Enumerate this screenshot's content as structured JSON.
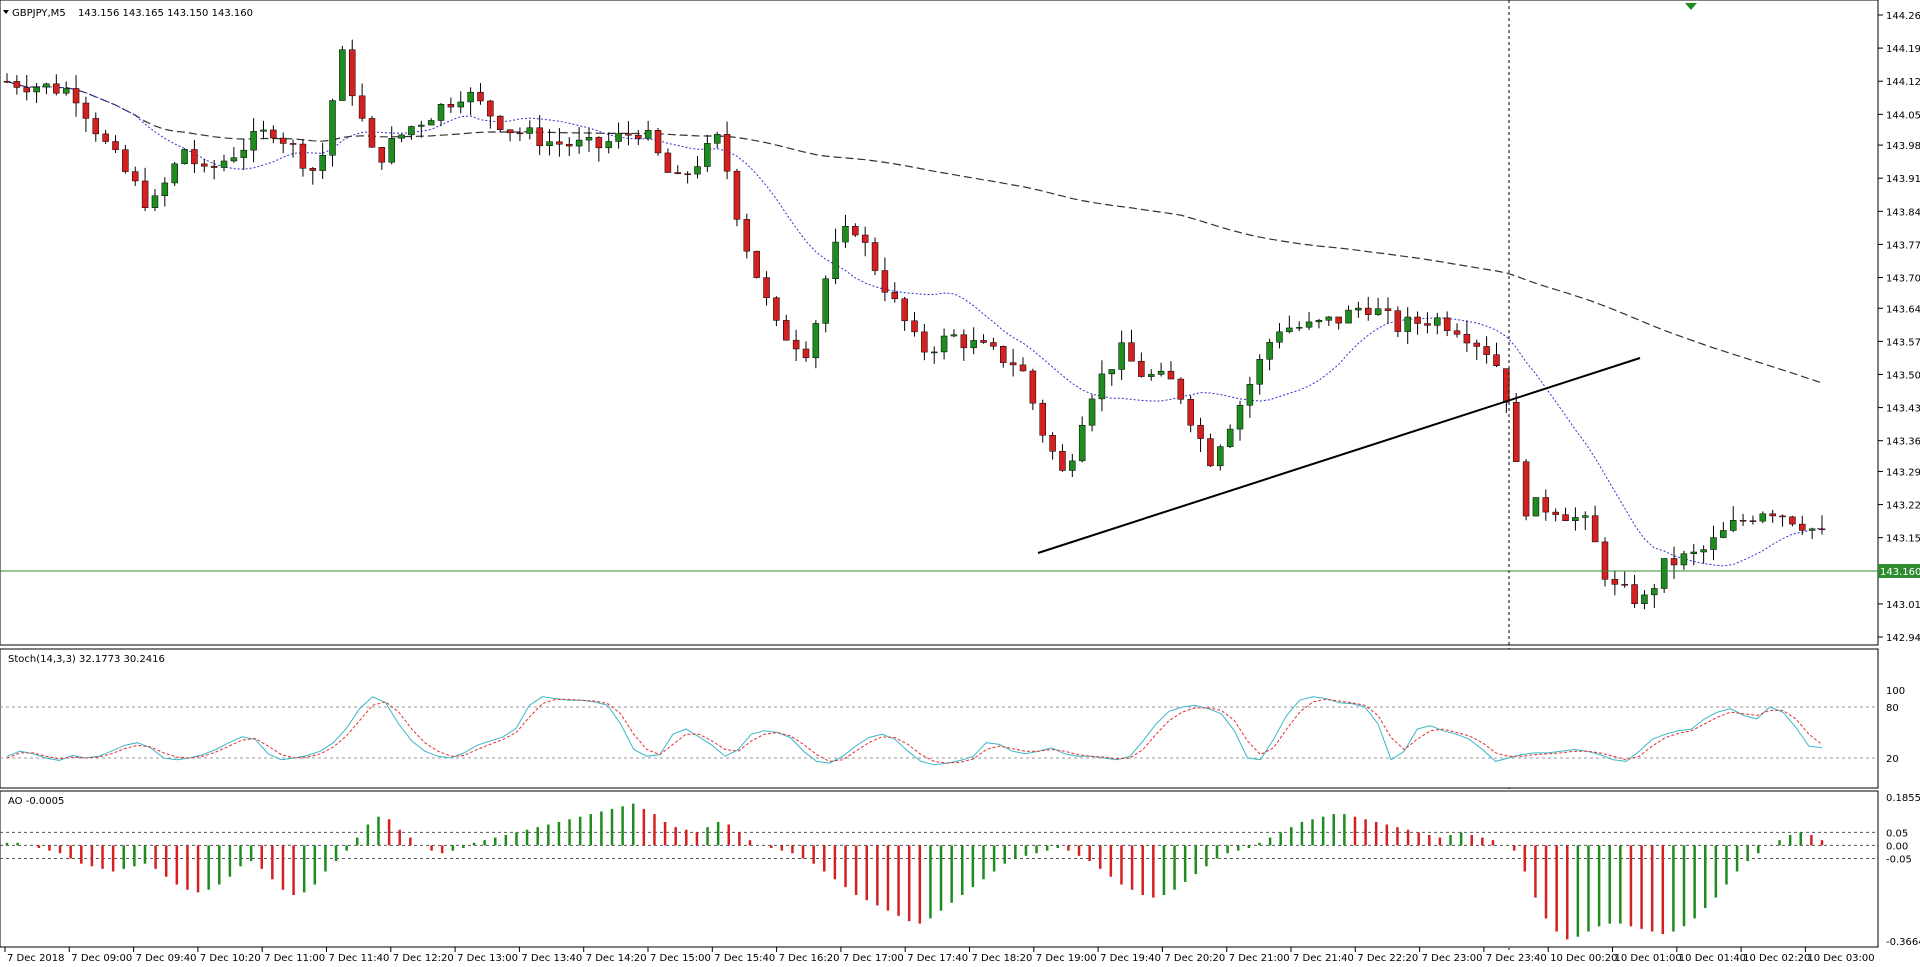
{
  "chart_data": {
    "type": "candlestick",
    "symbol_label": "GBPJPY,M5",
    "ohlc_readout": "143.156 143.165 143.150 143.160",
    "price_ticks": [
      "144.260",
      "144.190",
      "144.120",
      "144.050",
      "143.985",
      "143.915",
      "143.845",
      "143.775",
      "143.705",
      "143.640",
      "143.570",
      "143.500",
      "143.430",
      "143.360",
      "143.295",
      "143.225",
      "143.155",
      "143.085",
      "143.015",
      "142.945"
    ],
    "current_price": "143.160",
    "time_ticks": [
      "7 Dec 2018",
      "7 Dec 09:00",
      "7 Dec 09:40",
      "7 Dec 10:20",
      "7 Dec 11:00",
      "7 Dec 11:40",
      "7 Dec 12:20",
      "7 Dec 13:00",
      "7 Dec 13:40",
      "7 Dec 14:20",
      "7 Dec 15:00",
      "7 Dec 15:40",
      "7 Dec 16:20",
      "7 Dec 17:00",
      "7 Dec 17:40",
      "7 Dec 18:20",
      "7 Dec 19:00",
      "7 Dec 19:40",
      "7 Dec 20:20",
      "7 Dec 21:00",
      "7 Dec 21:40",
      "7 Dec 22:20",
      "7 Dec 23:00",
      "7 Dec 23:40",
      "10 Dec 00:20",
      "10 Dec 01:00",
      "10 Dec 01:40",
      "10 Dec 02:20",
      "10 Dec 03:00"
    ],
    "price_range": [
      142.945,
      144.26
    ],
    "colors": {
      "bull": "#1e8c1e",
      "bear": "#d42020",
      "ma_fast": "#3030d0",
      "ma_slow": "#333333",
      "trend": "#000000",
      "price_line": "#2e8b2e",
      "stoch_main": "#3bb8c8",
      "stoch_signal": "#e03030"
    },
    "stochastic": {
      "label": "Stoch(14,3,3) 32.1773 30.2416",
      "levels": [
        "100",
        "80",
        "20"
      ],
      "main": [
        22,
        28,
        25,
        20,
        17,
        23,
        20,
        22,
        28,
        35,
        38,
        32,
        20,
        18,
        20,
        24,
        30,
        38,
        45,
        42,
        25,
        18,
        20,
        23,
        28,
        38,
        55,
        78,
        92,
        85,
        60,
        40,
        28,
        22,
        20,
        26,
        35,
        40,
        45,
        55,
        82,
        92,
        90,
        88,
        88,
        86,
        82,
        60,
        30,
        22,
        24,
        48,
        54,
        45,
        35,
        22,
        30,
        48,
        52,
        50,
        44,
        28,
        16,
        14,
        22,
        34,
        44,
        48,
        42,
        28,
        16,
        12,
        14,
        17,
        22,
        38,
        36,
        28,
        25,
        28,
        32,
        25,
        22,
        22,
        20,
        18,
        22,
        40,
        60,
        75,
        80,
        82,
        78,
        72,
        52,
        20,
        18,
        42,
        70,
        88,
        92,
        90,
        85,
        84,
        80,
        60,
        18,
        28,
        54,
        58,
        52,
        48,
        42,
        30,
        16,
        20,
        24,
        26,
        26,
        28,
        30,
        28,
        24,
        18,
        16,
        28,
        42,
        48,
        52,
        54,
        66,
        74,
        78,
        70,
        66,
        80,
        74,
        56,
        34,
        32
      ],
      "signal": [
        20,
        26,
        26,
        22,
        19,
        21,
        20,
        21,
        25,
        31,
        35,
        33,
        26,
        21,
        20,
        22,
        27,
        34,
        41,
        43,
        34,
        24,
        20,
        21,
        25,
        33,
        46,
        64,
        82,
        86,
        74,
        54,
        38,
        28,
        22,
        23,
        30,
        36,
        42,
        50,
        68,
        84,
        89,
        89,
        88,
        87,
        84,
        72,
        48,
        30,
        24,
        36,
        48,
        48,
        40,
        30,
        28,
        40,
        48,
        50,
        46,
        36,
        24,
        16,
        18,
        28,
        38,
        45,
        44,
        36,
        24,
        16,
        14,
        15,
        19,
        30,
        34,
        31,
        28,
        28,
        30,
        28,
        24,
        22,
        21,
        19,
        20,
        30,
        48,
        64,
        74,
        79,
        79,
        76,
        64,
        40,
        24,
        32,
        54,
        74,
        86,
        89,
        87,
        85,
        82,
        70,
        44,
        30,
        42,
        52,
        54,
        50,
        46,
        38,
        26,
        22,
        22,
        24,
        25,
        26,
        28,
        28,
        26,
        22,
        18,
        22,
        34,
        44,
        49,
        52,
        60,
        68,
        74,
        72,
        70,
        76,
        76,
        66,
        48,
        36
      ]
    },
    "awesome_oscillator": {
      "label": "AO -0.0005",
      "ticks": [
        "0.1855",
        "0.05",
        "0.00",
        "-0.05",
        "-0.3664"
      ],
      "values": [
        0.01,
        0.01,
        0,
        -0.01,
        -0.02,
        -0.03,
        -0.05,
        -0.07,
        -0.08,
        -0.09,
        -0.1,
        -0.09,
        -0.08,
        -0.07,
        -0.09,
        -0.12,
        -0.15,
        -0.17,
        -0.18,
        -0.17,
        -0.15,
        -0.12,
        -0.08,
        -0.06,
        -0.09,
        -0.13,
        -0.17,
        -0.19,
        -0.18,
        -0.15,
        -0.1,
        -0.06,
        -0.02,
        0.03,
        0.08,
        0.11,
        0.1,
        0.06,
        0.03,
        0,
        -0.02,
        -0.03,
        -0.02,
        -0.01,
        0.01,
        0.02,
        0.03,
        0.04,
        0.05,
        0.06,
        0.07,
        0.08,
        0.09,
        0.1,
        0.11,
        0.12,
        0.13,
        0.14,
        0.15,
        0.16,
        0.14,
        0.12,
        0.09,
        0.07,
        0.06,
        0.05,
        0.07,
        0.09,
        0.08,
        0.05,
        0.02,
        0,
        -0.01,
        -0.02,
        -0.03,
        -0.05,
        -0.07,
        -0.1,
        -0.13,
        -0.16,
        -0.19,
        -0.21,
        -0.23,
        -0.25,
        -0.27,
        -0.29,
        -0.3,
        -0.28,
        -0.25,
        -0.22,
        -0.19,
        -0.16,
        -0.13,
        -0.1,
        -0.07,
        -0.05,
        -0.04,
        -0.03,
        -0.02,
        -0.01,
        -0.02,
        -0.04,
        -0.06,
        -0.09,
        -0.12,
        -0.15,
        -0.17,
        -0.19,
        -0.2,
        -0.19,
        -0.17,
        -0.14,
        -0.11,
        -0.08,
        -0.05,
        -0.03,
        -0.02,
        -0.01,
        0.01,
        0.03,
        0.05,
        0.07,
        0.09,
        0.1,
        0.11,
        0.12,
        0.12,
        0.11,
        0.1,
        0.09,
        0.08,
        0.07,
        0.06,
        0.05,
        0.04,
        0.03,
        0.04,
        0.05,
        0.04,
        0.03,
        0.02,
        0,
        -0.02,
        -0.1,
        -0.2,
        -0.28,
        -0.33,
        -0.36,
        -0.35,
        -0.33,
        -0.31,
        -0.3,
        -0.3,
        -0.31,
        -0.32,
        -0.33,
        -0.34,
        -0.33,
        -0.31,
        -0.28,
        -0.24,
        -0.2,
        -0.15,
        -0.1,
        -0.06,
        -0.03,
        0,
        0.02,
        0.04,
        0.05,
        0.04,
        0.02
      ]
    },
    "candles": []
  }
}
